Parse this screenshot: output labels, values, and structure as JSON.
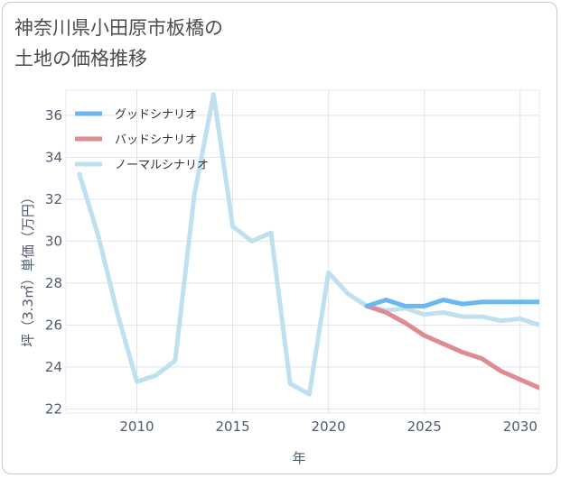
{
  "title_lines": [
    "神奈川県小田原市板橋の",
    "土地の価格推移"
  ],
  "chart_data": {
    "type": "line",
    "xlabel": "年",
    "ylabel": "坪（3.3㎡）単価（万円）",
    "xlim": [
      2006.3,
      2031
    ],
    "ylim": [
      21.8,
      37.2
    ],
    "xticks": [
      2010,
      2015,
      2020,
      2025,
      2030
    ],
    "yticks": [
      22,
      24,
      26,
      28,
      30,
      32,
      34,
      36
    ],
    "legend_position": "top-left",
    "series": [
      {
        "name": "グッドシナリオ",
        "color": "#6ab8ee",
        "x": [
          2022,
          2023,
          2024,
          2025,
          2026,
          2027,
          2028,
          2029,
          2030,
          2031
        ],
        "values": [
          26.9,
          27.2,
          26.9,
          26.9,
          27.2,
          27.0,
          27.1,
          27.1,
          27.1,
          27.1
        ]
      },
      {
        "name": "バッドシナリオ",
        "color": "#de8c93",
        "x": [
          2022,
          2023,
          2024,
          2025,
          2026,
          2027,
          2028,
          2029,
          2030,
          2031
        ],
        "values": [
          26.9,
          26.6,
          26.1,
          25.5,
          25.1,
          24.7,
          24.4,
          23.8,
          23.4,
          23.0
        ]
      },
      {
        "name": "ノーマルシナリオ",
        "color": "#bfe0ef",
        "x": [
          2007,
          2008,
          2009,
          2010,
          2011,
          2012,
          2013,
          2014,
          2015,
          2016,
          2017,
          2018,
          2019,
          2020,
          2021,
          2022,
          2023,
          2024,
          2025,
          2026,
          2027,
          2028,
          2029,
          2030,
          2031
        ],
        "values": [
          33.2,
          30.2,
          26.5,
          23.3,
          23.6,
          24.3,
          32.2,
          37.0,
          30.7,
          30.0,
          30.4,
          23.2,
          22.7,
          28.5,
          27.5,
          26.9,
          26.7,
          26.8,
          26.5,
          26.6,
          26.4,
          26.4,
          26.2,
          26.3,
          26.0
        ]
      }
    ]
  }
}
